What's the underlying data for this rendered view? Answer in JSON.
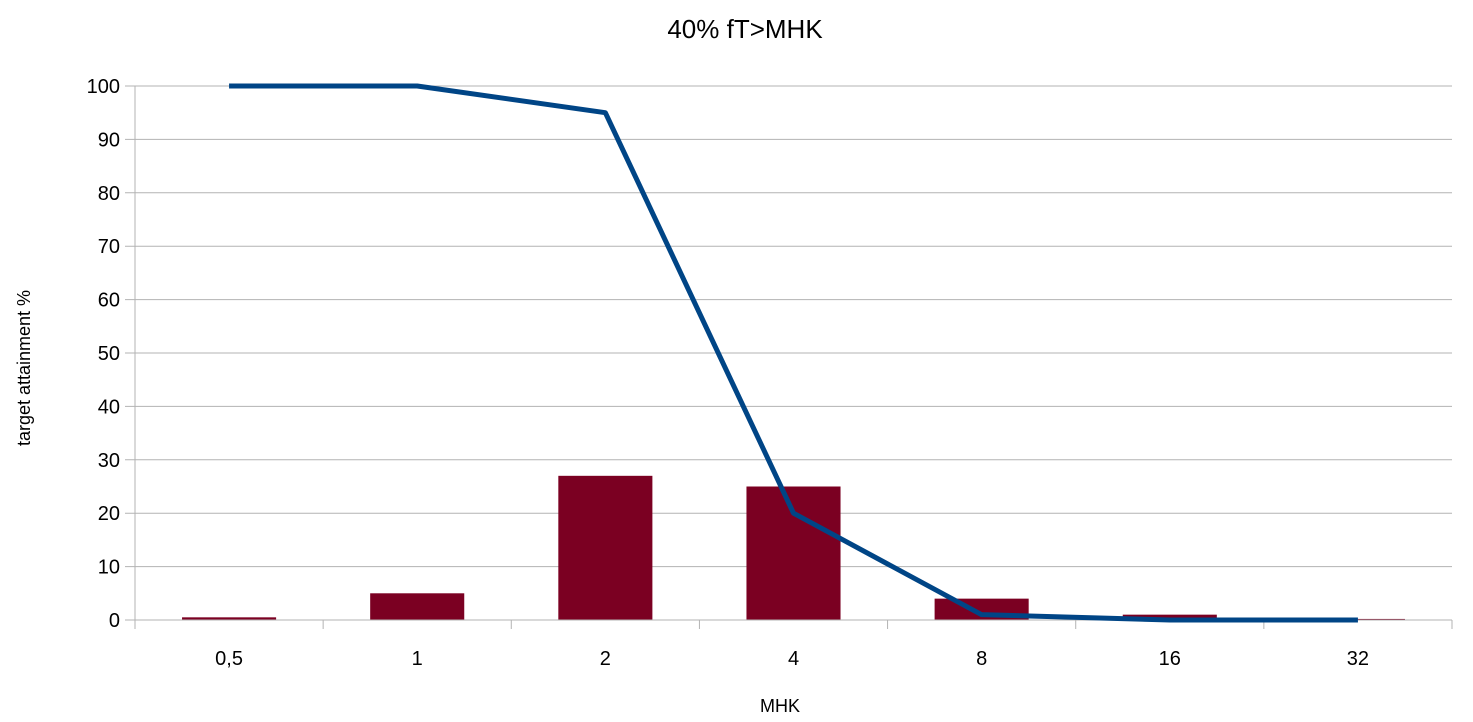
{
  "chart_data": {
    "type": "bar+line",
    "title": "40% fT>MHK",
    "xlabel": "MHK",
    "ylabel": "target attainment %",
    "categories": [
      "0,5",
      "1",
      "2",
      "4",
      "8",
      "16",
      "32"
    ],
    "ylim": [
      0,
      100
    ],
    "yticks": [
      0,
      10,
      20,
      30,
      40,
      50,
      60,
      70,
      80,
      90,
      100
    ],
    "grid": true,
    "legend": "none",
    "series": [
      {
        "kind": "bar",
        "color": "#7b0022",
        "values": [
          0.5,
          5,
          27,
          25,
          4,
          1,
          0.2
        ]
      },
      {
        "kind": "line",
        "color": "#004586",
        "values": [
          100,
          100,
          95,
          20,
          1,
          0,
          0
        ]
      }
    ]
  }
}
